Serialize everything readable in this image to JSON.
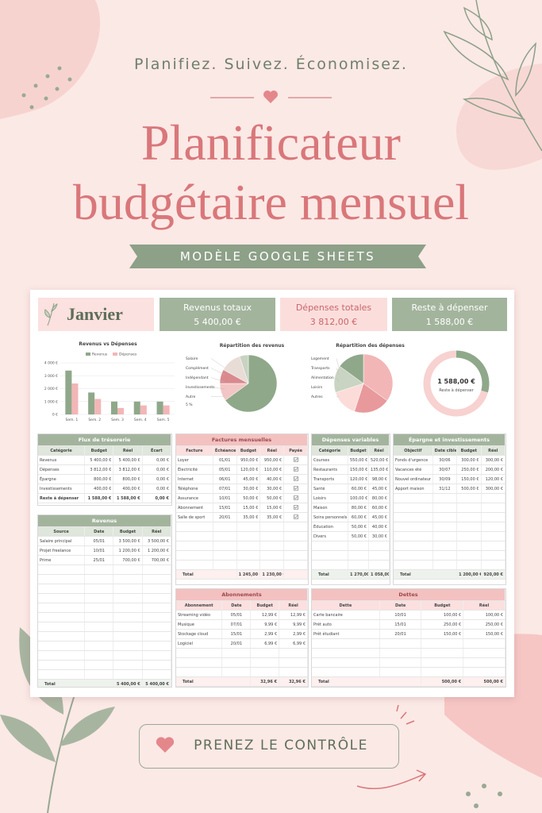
{
  "header": {
    "tagline": "Planifiez. Suivez. Économisez.",
    "title_line1": "Planificateur",
    "title_line2": "budgétaire mensuel",
    "badge": "MODÈLE GOOGLE SHEETS"
  },
  "sheet": {
    "month": "Janvier",
    "kpis": [
      {
        "label": "Revenus totaux",
        "value": "5 400,00 €",
        "theme": "green"
      },
      {
        "label": "Dépenses totales",
        "value": "3 812,00 €",
        "theme": "pink"
      },
      {
        "label": "Reste à dépenser",
        "value": "1 588,00 €",
        "theme": "green"
      }
    ],
    "tables": [
      {
        "title": "Flux de trésorerie",
        "theme": "green",
        "columns": [
          "Catégorie",
          "Budget",
          "Réel",
          "Écart"
        ],
        "rows": [
          [
            "Revenus",
            "5 400,00 €",
            "5 400,00 €",
            "0,00 €"
          ],
          [
            "Dépenses",
            "3 812,00 €",
            "3 812,00 €",
            "0,00 €"
          ],
          [
            "Épargne",
            "800,00 €",
            "800,00 €",
            "0,00 €"
          ],
          [
            "Investissements",
            "400,00 €",
            "400,00 €",
            "0,00 €"
          ],
          [
            "Reste à dépenser",
            "1 588,00 €",
            "1 588,00 €",
            "0,00 €"
          ]
        ]
      },
      {
        "title": "Revenus",
        "theme": "green",
        "columns": [
          "Source",
          "Date",
          "Budget",
          "Réel"
        ],
        "rows": [
          [
            "Salaire principal",
            "05/01",
            "3 500,00 €",
            "3 500,00 €"
          ],
          [
            "Projet freelance",
            "10/01",
            "1 200,00 €",
            "1 200,00 €"
          ],
          [
            "Prime",
            "25/01",
            "700,00 €",
            "700,00 €"
          ]
        ],
        "total": {
          "label": "Total",
          "values": [
            "5 400,00 €",
            "5 400,00 €"
          ]
        }
      },
      {
        "title": "Factures mensuelles",
        "theme": "pink",
        "check_column": true,
        "columns": [
          "Facture",
          "Échéance",
          "Budget",
          "Réel",
          "Payée"
        ],
        "rows": [
          [
            "Loyer",
            "01/01",
            "950,00 €",
            "950,00 €"
          ],
          [
            "Électricité",
            "05/01",
            "120,00 €",
            "110,00 €"
          ],
          [
            "Internet",
            "06/01",
            "45,00 €",
            "40,00 €"
          ],
          [
            "Téléphone",
            "07/01",
            "30,00 €",
            "30,00 €"
          ],
          [
            "Assurance",
            "10/01",
            "50,00 €",
            "50,00 €"
          ],
          [
            "Abonnement",
            "15/01",
            "15,00 €",
            "15,00 €"
          ],
          [
            "Salle de sport",
            "20/01",
            "35,00 €",
            "35,00 €"
          ]
        ],
        "total": {
          "label": "Total",
          "values": [
            "1 245,00 €",
            "1 230,00 €"
          ]
        }
      },
      {
        "title": "Dépenses variables",
        "theme": "green",
        "columns": [
          "Catégorie",
          "Budget",
          "Réel"
        ],
        "rows": [
          [
            "Courses",
            "550,00 €",
            "520,00 €"
          ],
          [
            "Restaurants",
            "150,00 €",
            "135,00 €"
          ],
          [
            "Transports",
            "120,00 €",
            "98,00 €"
          ],
          [
            "Santé",
            "60,00 €",
            "45,00 €"
          ],
          [
            "Loisirs",
            "100,00 €",
            "80,00 €"
          ],
          [
            "Maison",
            "80,00 €",
            "60,00 €"
          ],
          [
            "Soins personnels",
            "60,00 €",
            "45,00 €"
          ],
          [
            "Éducation",
            "50,00 €",
            "40,00 €"
          ],
          [
            "Divers",
            "50,00 €",
            "30,00 €"
          ]
        ],
        "total": {
          "label": "Total",
          "values": [
            "1 270,00 €",
            "1 058,00 €"
          ]
        }
      },
      {
        "title": "Épargne et investissements",
        "theme": "green",
        "columns": [
          "Objectif",
          "Date cible",
          "Budget",
          "Réel"
        ],
        "rows": [
          [
            "Fonds d'urgence",
            "30/06",
            "300,00 €",
            "300,00 €"
          ],
          [
            "Vacances été",
            "30/07",
            "250,00 €",
            "200,00 €"
          ],
          [
            "Nouvel ordinateur",
            "30/09",
            "150,00 €",
            "120,00 €"
          ],
          [
            "Apport maison",
            "31/12",
            "500,00 €",
            "300,00 €"
          ]
        ],
        "total": {
          "label": "Total",
          "values": [
            "1 200,00 €",
            "920,00 €"
          ]
        }
      },
      {
        "title": "Abonnements",
        "theme": "pink",
        "columns": [
          "Abonnement",
          "Date",
          "Budget",
          "Réel"
        ],
        "rows": [
          [
            "Streaming vidéo",
            "05/01",
            "12,99 €",
            "12,99 €"
          ],
          [
            "Musique",
            "07/01",
            "9,99 €",
            "9,99 €"
          ],
          [
            "Stockage cloud",
            "15/01",
            "2,99 €",
            "2,99 €"
          ],
          [
            "Logiciel",
            "20/01",
            "6,99 €",
            "6,99 €"
          ]
        ],
        "total": {
          "label": "Total",
          "values": [
            "32,96 €",
            "32,96 €"
          ]
        }
      },
      {
        "title": "Dettes",
        "theme": "pink",
        "columns": [
          "Dette",
          "Date",
          "Budget",
          "Réel"
        ],
        "rows": [
          [
            "Carte bancaire",
            "10/01",
            "100,00 €",
            "100,00 €"
          ],
          [
            "Prêt auto",
            "15/01",
            "250,00 €",
            "250,00 €"
          ],
          [
            "Prêt étudiant",
            "20/01",
            "150,00 €",
            "150,00 €"
          ]
        ],
        "total": {
          "label": "Total",
          "values": [
            "500,00 €",
            "500,00 €"
          ]
        }
      }
    ]
  },
  "chart_data": [
    {
      "type": "bar",
      "title": "Revenus vs Dépenses",
      "categories": [
        "Sem. 1",
        "Sem. 2",
        "Sem. 3",
        "Sem. 4",
        "Sem. 5"
      ],
      "series": [
        {
          "name": "Revenus",
          "color": "#8fa88a",
          "values": [
            3400,
            1700,
            1000,
            1000,
            1000
          ]
        },
        {
          "name": "Dépenses",
          "color": "#f2b6b6",
          "values": [
            2400,
            1200,
            500,
            700,
            700
          ]
        }
      ],
      "ylim": [
        0,
        4000
      ],
      "yticks": [
        {
          "value": 0,
          "label": "0 €"
        },
        {
          "value": 1000,
          "label": "1 000 €"
        },
        {
          "value": 2000,
          "label": "2 000 €"
        },
        {
          "value": 3000,
          "label": "3 000 €"
        },
        {
          "value": 4000,
          "label": "4 000 €"
        }
      ],
      "legend": "top"
    },
    {
      "type": "pie",
      "title": "Répartition des revenus",
      "categories": [
        "Salaire",
        "Complément",
        "Indépendant",
        "Investissements",
        "Autre"
      ],
      "values": [
        65,
        10,
        8,
        12,
        5
      ],
      "value_labels": [
        null,
        null,
        null,
        null,
        "5 %"
      ],
      "colors": [
        "#8fa88a",
        "#f2c6c4",
        "#d98a8f",
        "#e8dcd6",
        "#c8d3c2"
      ]
    },
    {
      "type": "pie",
      "title": "Répartition des dépenses",
      "categories": [
        "Logement",
        "Transports",
        "Alimentation",
        "Loisirs",
        "Autres"
      ],
      "values": [
        35,
        20,
        15,
        15,
        15
      ],
      "colors": [
        "#f2b6b6",
        "#e8999c",
        "#fbdcd9",
        "#c9d4c3",
        "#8fa88a"
      ]
    },
    {
      "type": "donut",
      "center_label": "1 588,00 €",
      "center_sublabel": "Reste à dépenser",
      "values": [
        1588,
        3812
      ],
      "colors": [
        "#8fa88a",
        "#f7d2d0"
      ]
    }
  ],
  "footer": {
    "cta": "PRENEZ LE CONTRÔLE"
  }
}
